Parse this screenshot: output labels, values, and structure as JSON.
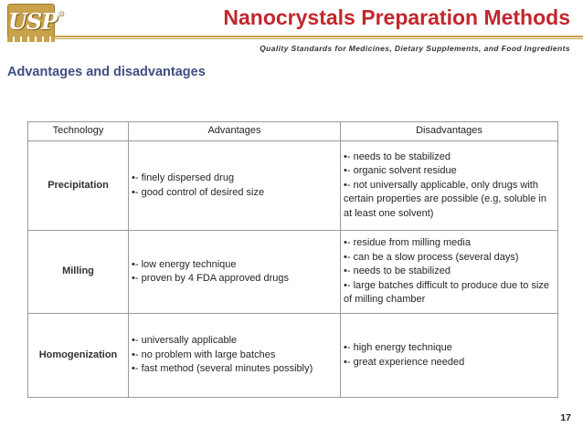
{
  "header": {
    "logo_text": "USP",
    "logo_mark": "®",
    "title": "Nanocrystals Preparation Methods",
    "tagline": "Quality Standards for Medicines, Dietary Supplements, and Food Ingredients"
  },
  "subtitle": "Advantages and disadvantages",
  "table": {
    "headers": [
      "Technology",
      "Advantages",
      "Disadvantages"
    ],
    "rows": [
      {
        "technology": "Precipitation",
        "advantages": [
          "•- finely dispersed drug",
          "•- good control of desired size"
        ],
        "disadvantages": [
          "•- needs to be stabilized",
          "•- organic solvent residue",
          "•- not universally applicable, only drugs with certain properties are possible (e.g, soluble in at least one solvent)"
        ]
      },
      {
        "technology": "Milling",
        "advantages": [
          "•- low energy technique",
          "•- proven by 4 FDA approved drugs"
        ],
        "disadvantages": [
          "•- residue from milling media",
          "•- can be a slow process (several days)",
          "•- needs to be stabilized",
          "•- large batches difficult to produce due to size of milling chamber"
        ]
      },
      {
        "technology": "Homogenization",
        "advantages": [
          "•- universally applicable",
          "•- no problem with large batches",
          "•- fast method (several minutes possibly)"
        ],
        "disadvantages": [
          "•- high energy technique",
          "•- great experience needed"
        ]
      }
    ]
  },
  "page_number": "17",
  "colors": {
    "title_red": "#c1272d",
    "subtitle_blue": "#3f4e84",
    "logo_gold": "#c8a24a"
  }
}
